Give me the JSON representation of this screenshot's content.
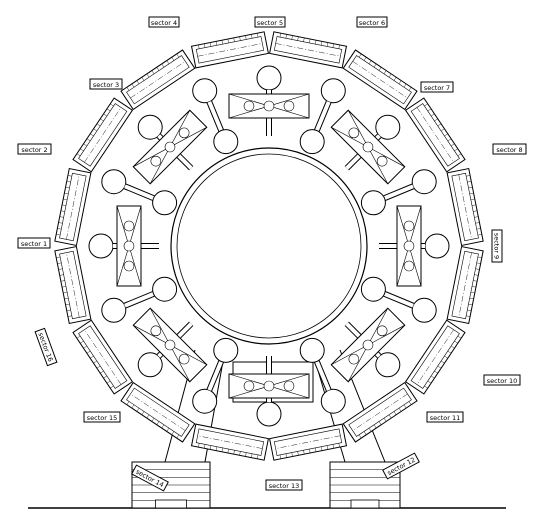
{
  "diagram": {
    "sector_labels": [
      {
        "id": 4,
        "text": "sector 4"
      },
      {
        "id": 5,
        "text": "sector 5"
      },
      {
        "id": 6,
        "text": "sector 6"
      },
      {
        "id": 3,
        "text": "sector 3"
      },
      {
        "id": 7,
        "text": "sector 7"
      },
      {
        "id": 2,
        "text": "sector 2"
      },
      {
        "id": 8,
        "text": "sector 8"
      },
      {
        "id": 1,
        "text": "sector 1"
      },
      {
        "id": 9,
        "text": "sector 9"
      },
      {
        "id": 16,
        "text": "sector 16"
      },
      {
        "id": 10,
        "text": "sector 10"
      },
      {
        "id": 15,
        "text": "sector 15"
      },
      {
        "id": 11,
        "text": "sector 11"
      },
      {
        "id": 14,
        "text": "sector 14"
      },
      {
        "id": 12,
        "text": "sector 12"
      },
      {
        "id": 13,
        "text": "sector 13"
      }
    ]
  }
}
